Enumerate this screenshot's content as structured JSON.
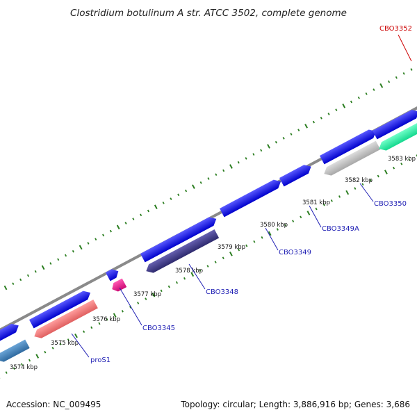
{
  "title": "Clostridium botulinum A str. ATCC 3502, complete genome",
  "footer": {
    "accession": "Accession: NC_009495",
    "summary": "Topology: circular; Length: 3,886,916 bp; Genes: 3,686"
  },
  "colors": {
    "backbone": "#8a8a8a",
    "tick": "#2a7d1f",
    "label_blue": "#1f1fb4",
    "label_red": "#cc0000",
    "cds": "#1010e6",
    "dark_purple": "#3f3a86",
    "salmon": "#f07a7a",
    "steel_blue": "#3f7fb6",
    "magenta": "#e8198c",
    "light_gray": "#b9b9b9",
    "aquamarine": "#2ef0a6"
  },
  "chart_data": {
    "type": "genome-map",
    "topology": "circular",
    "length_bp": 3886916,
    "kbp_ticks": [
      "3574 kbp",
      "3575 kbp",
      "3576 kbp",
      "3577 kbp",
      "3578 kbp",
      "3579 kbp",
      "3580 kbp",
      "3581 kbp",
      "3582 kbp",
      "3583 kbp"
    ],
    "gene_labels": [
      "proS1",
      "CBO3345",
      "CBO3348",
      "CBO3349",
      "CBO3349A",
      "CBO3350",
      "CBO3352"
    ]
  }
}
